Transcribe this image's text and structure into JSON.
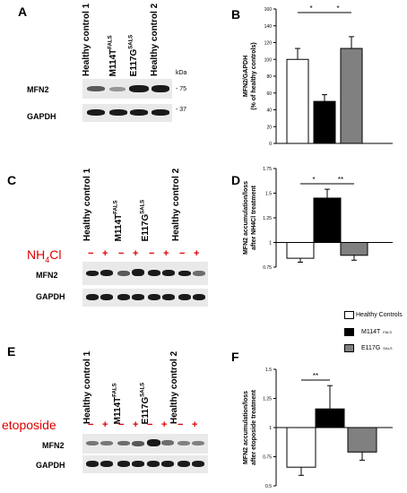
{
  "panels": {
    "A": {
      "letter": "A",
      "lanes": [
        "Healthy control 1",
        "M114T",
        "E117G",
        "Healthy control 2"
      ],
      "lane_sup": [
        "",
        "FALS",
        "SALS",
        ""
      ],
      "kda_label": "kDa",
      "markers": [
        "- 75",
        "- 37"
      ],
      "rows": [
        "MFN2",
        "GAPDH"
      ]
    },
    "C": {
      "letter": "C",
      "lanes": [
        "Healthy control 1",
        "M114T",
        "E117G",
        "Healthy control 2"
      ],
      "lane_sup": [
        "",
        "FALS",
        "SALS",
        ""
      ],
      "treatment": "NH",
      "treatment_sub": "4",
      "treatment_tail": "Cl",
      "signs": [
        "−",
        "+",
        "−",
        "+",
        "−",
        "+",
        "−",
        "+"
      ],
      "rows": [
        "MFN2",
        "GAPDH"
      ]
    },
    "E": {
      "letter": "E",
      "lanes": [
        "Healthy control 1",
        "M114T",
        "E117G",
        "Healthy control 2"
      ],
      "lane_sup": [
        "",
        "FALS",
        "SALS",
        ""
      ],
      "treatment": "etoposide",
      "signs": [
        "−",
        "+",
        "−",
        "+",
        "−",
        "+",
        "−",
        "+"
      ],
      "rows": [
        "MFN2",
        "GAPDH"
      ]
    },
    "B": {
      "letter": "B",
      "sig": [
        "*",
        "*"
      ]
    },
    "D": {
      "letter": "D",
      "sig": [
        "*",
        "**"
      ]
    },
    "F": {
      "letter": "F",
      "sig": [
        "**"
      ]
    }
  },
  "legend": {
    "items": [
      "Healthy Controls",
      "M114T",
      "E117G"
    ],
    "sups": [
      "",
      "FALS",
      "SALS"
    ],
    "colors": [
      "#ffffff",
      "#000000",
      "#808080"
    ]
  },
  "chart_data": [
    {
      "type": "bar",
      "panel": "B",
      "categories": [
        "Healthy Controls",
        "M114T",
        "E117G"
      ],
      "values": [
        100,
        50,
        113
      ],
      "errors": [
        13,
        8,
        14
      ],
      "colors": [
        "#ffffff",
        "#000000",
        "#808080"
      ],
      "ylabel": "MFN2/GAPDH (% of healthy controls)",
      "ylim": [
        0,
        160
      ],
      "yticks": [
        "0",
        "20",
        "40",
        "60",
        "80",
        "100",
        "120",
        "140",
        "160"
      ],
      "significance": [
        "*",
        "*"
      ]
    },
    {
      "type": "bar",
      "panel": "D",
      "categories": [
        "Healthy Controls",
        "M114T",
        "E117G"
      ],
      "values": [
        0.84,
        1.45,
        0.87
      ],
      "errors": [
        0.04,
        0.09,
        0.05
      ],
      "baseline": 1,
      "colors": [
        "#ffffff",
        "#000000",
        "#808080"
      ],
      "ylabel": "MFN2 accumulation/loss after NH4Cl treatment",
      "ylim": [
        0.75,
        1.75
      ],
      "yticks": [
        "0.75",
        "1",
        "1.25",
        "1.5",
        "1.75"
      ],
      "significance": [
        "*",
        "**"
      ]
    },
    {
      "type": "bar",
      "panel": "F",
      "categories": [
        "Healthy Controls",
        "M114T",
        "E117G"
      ],
      "values": [
        0.66,
        1.16,
        0.79
      ],
      "errors": [
        0.07,
        0.2,
        0.07
      ],
      "baseline": 1,
      "colors": [
        "#ffffff",
        "#000000",
        "#808080"
      ],
      "ylabel": "MFN2 accumulation/loss after etoposide treatment",
      "ylim": [
        0.5,
        1.5
      ],
      "yticks": [
        "0.5",
        "0.75",
        "1",
        "1.25",
        "1.5"
      ],
      "significance": [
        "**"
      ]
    }
  ]
}
